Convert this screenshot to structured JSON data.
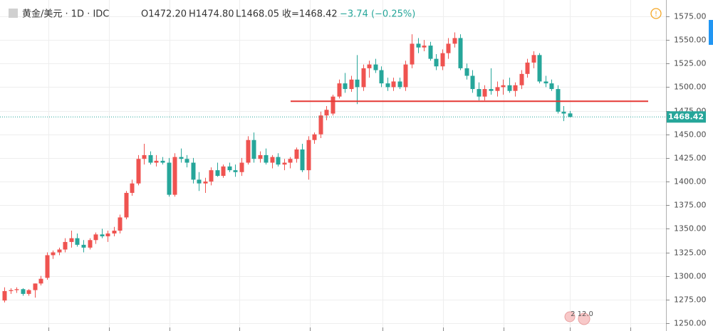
{
  "header": {
    "symbol": "黄金/美元 · 1D · IDC",
    "open": "O1472.20",
    "high": "H1474.80",
    "low": "L1468.05",
    "close": "收=1468.42",
    "change": "−3.74 (−0.25%)"
  },
  "chart_data": {
    "type": "candlestick",
    "up_color": "#ef5350",
    "down_color": "#26a69a",
    "grid": true,
    "ylim": [
      1241.7,
      1592.3
    ],
    "yticks": [
      {
        "value": 1250,
        "label": "1250.00"
      },
      {
        "value": 1275,
        "label": "1275.00"
      },
      {
        "value": 1300,
        "label": "1300.00"
      },
      {
        "value": 1325,
        "label": "1325.00"
      },
      {
        "value": 1350,
        "label": "1350.00"
      },
      {
        "value": 1375,
        "label": "1375.00"
      },
      {
        "value": 1400,
        "label": "1400.00"
      },
      {
        "value": 1425,
        "label": "1425.00"
      },
      {
        "value": 1450,
        "label": "1450.00"
      },
      {
        "value": 1475,
        "label": "1475.00"
      },
      {
        "value": 1500,
        "label": "1500.00"
      },
      {
        "value": 1525,
        "label": "1525.00"
      },
      {
        "value": 1550,
        "label": "1550.00"
      },
      {
        "value": 1575,
        "label": "1575.00"
      }
    ],
    "last_price": 1468.42,
    "horizontal_line": {
      "value": 1485,
      "color": "#e53935"
    },
    "event_label": "2 12.0",
    "ohlc": [
      [
        1274,
        1288,
        1272,
        1284
      ],
      [
        1284,
        1287,
        1281,
        1285
      ],
      [
        1285,
        1288,
        1282,
        1286
      ],
      [
        1286,
        1287,
        1279,
        1281
      ],
      [
        1281,
        1286,
        1279,
        1285
      ],
      [
        1285,
        1292,
        1277,
        1292
      ],
      [
        1292,
        1300,
        1290,
        1297
      ],
      [
        1298,
        1325,
        1296,
        1322
      ],
      [
        1322,
        1327,
        1318,
        1325
      ],
      [
        1325,
        1330,
        1322,
        1328
      ],
      [
        1328,
        1340,
        1325,
        1336
      ],
      [
        1336,
        1348,
        1330,
        1340
      ],
      [
        1340,
        1345,
        1331,
        1333
      ],
      [
        1333,
        1338,
        1325,
        1330
      ],
      [
        1330,
        1340,
        1328,
        1338
      ],
      [
        1338,
        1346,
        1334,
        1344
      ],
      [
        1344,
        1350,
        1340,
        1342
      ],
      [
        1342,
        1348,
        1336,
        1345
      ],
      [
        1345,
        1352,
        1342,
        1348
      ],
      [
        1348,
        1365,
        1345,
        1362
      ],
      [
        1362,
        1390,
        1360,
        1388
      ],
      [
        1388,
        1402,
        1385,
        1398
      ],
      [
        1398,
        1428,
        1396,
        1424
      ],
      [
        1424,
        1440,
        1418,
        1428
      ],
      [
        1428,
        1432,
        1418,
        1420
      ],
      [
        1420,
        1428,
        1416,
        1422
      ],
      [
        1422,
        1426,
        1418,
        1420
      ],
      [
        1420,
        1425,
        1384,
        1386
      ],
      [
        1386,
        1430,
        1384,
        1426
      ],
      [
        1426,
        1435,
        1420,
        1424
      ],
      [
        1424,
        1428,
        1415,
        1420
      ],
      [
        1420,
        1425,
        1398,
        1402
      ],
      [
        1402,
        1410,
        1390,
        1398
      ],
      [
        1398,
        1404,
        1388,
        1400
      ],
      [
        1400,
        1415,
        1396,
        1412
      ],
      [
        1412,
        1420,
        1405,
        1406
      ],
      [
        1406,
        1418,
        1404,
        1416
      ],
      [
        1416,
        1420,
        1410,
        1412
      ],
      [
        1412,
        1418,
        1405,
        1410
      ],
      [
        1410,
        1425,
        1406,
        1420
      ],
      [
        1420,
        1448,
        1418,
        1444
      ],
      [
        1444,
        1452,
        1420,
        1424
      ],
      [
        1424,
        1432,
        1420,
        1428
      ],
      [
        1428,
        1435,
        1418,
        1420
      ],
      [
        1420,
        1428,
        1414,
        1426
      ],
      [
        1426,
        1430,
        1416,
        1418
      ],
      [
        1418,
        1424,
        1412,
        1420
      ],
      [
        1420,
        1426,
        1414,
        1424
      ],
      [
        1424,
        1436,
        1420,
        1434
      ],
      [
        1434,
        1440,
        1410,
        1412
      ],
      [
        1412,
        1448,
        1402,
        1444
      ],
      [
        1444,
        1452,
        1440,
        1450
      ],
      [
        1450,
        1474,
        1446,
        1470
      ],
      [
        1470,
        1480,
        1465,
        1476
      ],
      [
        1472,
        1492,
        1470,
        1490
      ],
      [
        1490,
        1508,
        1488,
        1504
      ],
      [
        1504,
        1515,
        1494,
        1498
      ],
      [
        1498,
        1512,
        1495,
        1508
      ],
      [
        1508,
        1534,
        1482,
        1500
      ],
      [
        1500,
        1524,
        1496,
        1520
      ],
      [
        1520,
        1528,
        1510,
        1524
      ],
      [
        1524,
        1530,
        1515,
        1518
      ],
      [
        1518,
        1522,
        1500,
        1504
      ],
      [
        1504,
        1510,
        1496,
        1500
      ],
      [
        1500,
        1510,
        1496,
        1506
      ],
      [
        1506,
        1510,
        1498,
        1500
      ],
      [
        1500,
        1528,
        1496,
        1524
      ],
      [
        1524,
        1556,
        1520,
        1546
      ],
      [
        1546,
        1552,
        1536,
        1542
      ],
      [
        1542,
        1550,
        1538,
        1544
      ],
      [
        1544,
        1548,
        1528,
        1530
      ],
      [
        1530,
        1535,
        1518,
        1522
      ],
      [
        1522,
        1540,
        1518,
        1536
      ],
      [
        1536,
        1552,
        1530,
        1546
      ],
      [
        1546,
        1558,
        1542,
        1552
      ],
      [
        1552,
        1556,
        1518,
        1520
      ],
      [
        1520,
        1525,
        1508,
        1512
      ],
      [
        1512,
        1518,
        1494,
        1498
      ],
      [
        1498,
        1505,
        1486,
        1490
      ],
      [
        1490,
        1502,
        1486,
        1498
      ],
      [
        1498,
        1520,
        1492,
        1496
      ],
      [
        1496,
        1506,
        1490,
        1500
      ],
      [
        1500,
        1508,
        1492,
        1502
      ],
      [
        1502,
        1510,
        1494,
        1496
      ],
      [
        1496,
        1505,
        1490,
        1502
      ],
      [
        1502,
        1518,
        1498,
        1514
      ],
      [
        1514,
        1530,
        1510,
        1526
      ],
      [
        1526,
        1538,
        1520,
        1534
      ],
      [
        1534,
        1536,
        1504,
        1506
      ],
      [
        1506,
        1512,
        1500,
        1504
      ],
      [
        1504,
        1508,
        1496,
        1498
      ],
      [
        1498,
        1502,
        1472,
        1474
      ],
      [
        1474,
        1480,
        1464,
        1472
      ],
      [
        1472.2,
        1474.8,
        1468.05,
        1468.42
      ]
    ]
  }
}
